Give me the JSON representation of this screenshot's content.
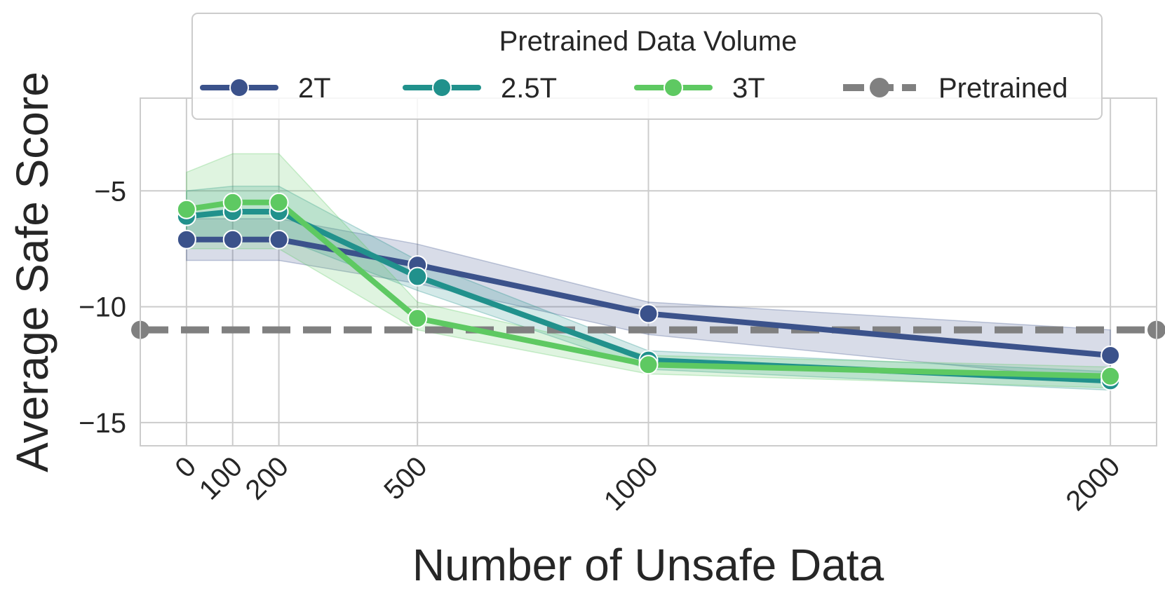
{
  "chart_data": {
    "type": "line",
    "title": "",
    "xlabel": "Number of Unsafe Data",
    "ylabel": "Average Safe Score",
    "x": [
      0,
      100,
      200,
      500,
      1000,
      2000
    ],
    "x_tick_labels": [
      "0",
      "100",
      "200",
      "500",
      "1000",
      "2000"
    ],
    "xlim": [
      -100,
      2100
    ],
    "ylim": [
      -16,
      -1
    ],
    "y_ticks": [
      -5,
      -10,
      -15
    ],
    "y_tick_labels": [
      "−5",
      "−10",
      "−15"
    ],
    "grid": true,
    "legend": {
      "title": "Pretrained Data Volume",
      "placement": "top-center",
      "entries": [
        "2T",
        "2.5T",
        "3T",
        "Pretrained"
      ]
    },
    "series": [
      {
        "name": "2T",
        "color": "#3b528b",
        "values": [
          -7.1,
          -7.1,
          -7.1,
          -8.2,
          -10.3,
          -12.1
        ],
        "ci_low": [
          -8.0,
          -8.0,
          -8.0,
          -9.0,
          -11.2,
          -13.2
        ],
        "ci_high": [
          -6.2,
          -6.2,
          -6.2,
          -7.3,
          -9.8,
          -11.0
        ]
      },
      {
        "name": "2.5T",
        "color": "#21918c",
        "values": [
          -6.1,
          -5.9,
          -5.9,
          -8.7,
          -12.3,
          -13.2
        ],
        "ci_low": [
          -7.2,
          -7.0,
          -7.0,
          -9.3,
          -12.7,
          -13.6
        ],
        "ci_high": [
          -5.0,
          -4.8,
          -4.8,
          -8.0,
          -11.9,
          -12.8
        ]
      },
      {
        "name": "3T",
        "color": "#5ec962",
        "values": [
          -5.8,
          -5.5,
          -5.5,
          -10.5,
          -12.5,
          -13.0
        ],
        "ci_low": [
          -7.5,
          -7.5,
          -7.5,
          -11.0,
          -12.9,
          -13.5
        ],
        "ci_high": [
          -4.2,
          -3.4,
          -3.4,
          -9.8,
          -12.1,
          -12.6
        ]
      }
    ],
    "reference_line": {
      "name": "Pretrained",
      "value": -11.0,
      "color": "#808080",
      "style": "dashed"
    }
  }
}
